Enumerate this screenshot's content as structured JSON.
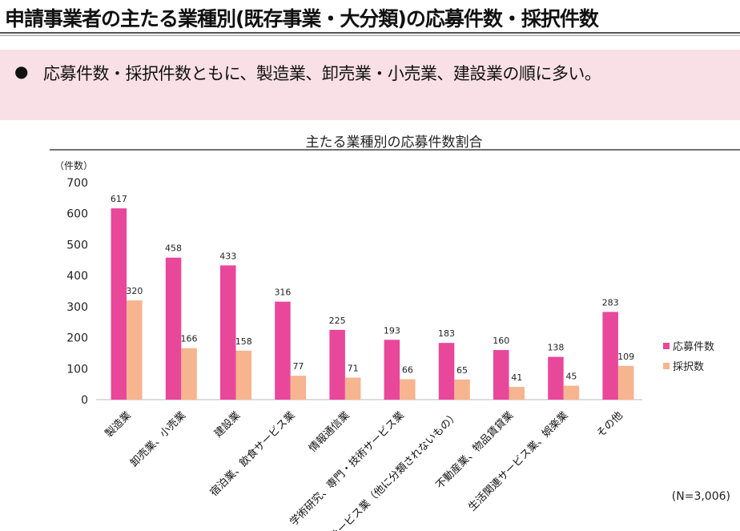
{
  "header": {
    "title": "申請事業者の主たる業種別(既存事業・大分類)の応募件数・採択件数"
  },
  "summary": {
    "bullet": "●",
    "text": "応募件数・採択件数ともに、製造業、卸売業・小売業、建設業の順に多い。"
  },
  "note": "(N=3,006)",
  "chart_data": {
    "type": "bar",
    "title": "主たる業種別の応募件数割合",
    "ylabel": "（件数）",
    "xlabel": "",
    "ylim": [
      0,
      700
    ],
    "yticks": [
      0,
      100,
      200,
      300,
      400,
      500,
      600,
      700
    ],
    "legend_position": "right",
    "categories": [
      "製造業",
      "卸売業、小売業",
      "建設業",
      "宿泊業、飲食サービス業",
      "情報通信業",
      "学術研究、専門・技術サービス業",
      "サービス業（他に分類されないもの）",
      "不動産業、物品賃貸業",
      "生活関連サービス業、娯楽業",
      "その他"
    ],
    "series": [
      {
        "name": "応募件数",
        "color": "#e9479a",
        "values": [
          617,
          458,
          433,
          316,
          225,
          193,
          183,
          160,
          138,
          283
        ]
      },
      {
        "name": "採択数",
        "color": "#f6b48f",
        "values": [
          320,
          166,
          158,
          77,
          71,
          66,
          65,
          41,
          45,
          109
        ]
      }
    ]
  }
}
